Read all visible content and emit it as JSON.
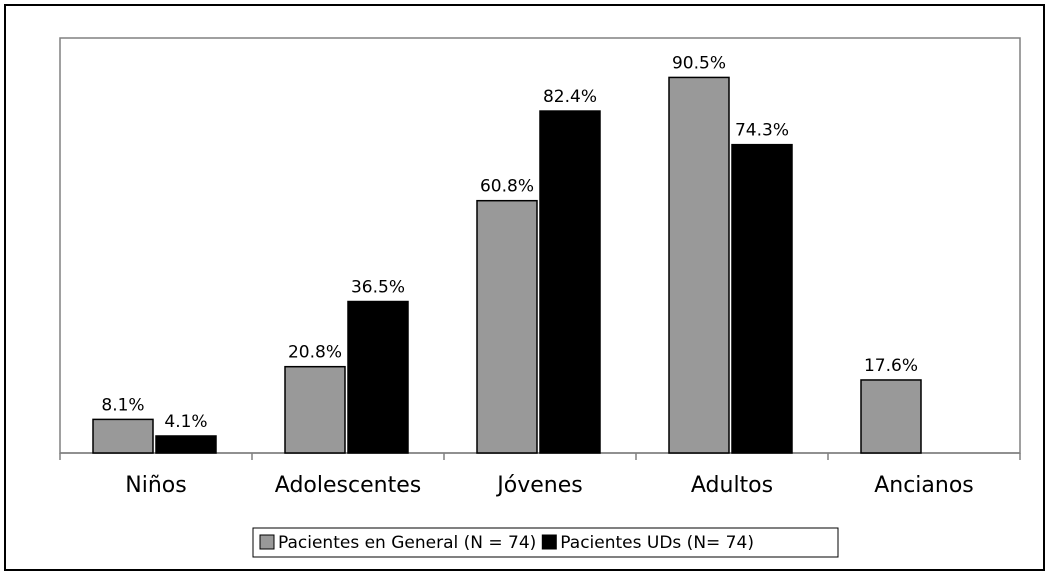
{
  "chart_data": {
    "type": "bar",
    "categories": [
      "Niños",
      "Adolescentes",
      "Jóvenes",
      "Adultos",
      "Ancianos"
    ],
    "series": [
      {
        "name": "Pacientes en General (N = 74)",
        "color": "#999999",
        "values": [
          8.1,
          20.8,
          60.8,
          90.5,
          17.6
        ],
        "value_labels": [
          "8.1%",
          "20.8%",
          "60.8%",
          "90.5%",
          "17.6%"
        ]
      },
      {
        "name": "Pacientes UDs (N= 74)",
        "color": "#000000",
        "values": [
          4.1,
          36.5,
          82.4,
          74.3,
          null
        ],
        "value_labels": [
          "4.1%",
          "36.5%",
          "82.4%",
          "74.3%",
          null
        ]
      }
    ],
    "ylim": [
      0,
      100
    ]
  }
}
